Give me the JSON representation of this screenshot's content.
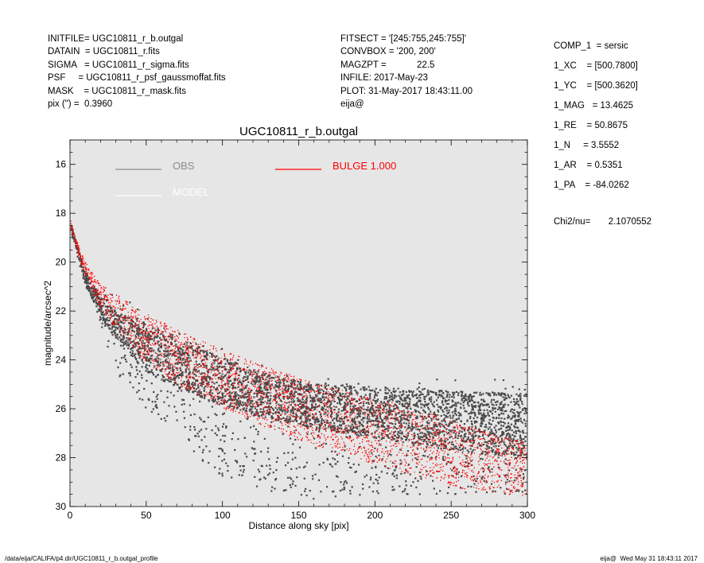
{
  "header": {
    "left": [
      "INITFILE= UGC10811_r_b.outgal",
      "DATAIN  = UGC10811_r.fits",
      "SIGMA   = UGC10811_r_sigma.fits",
      "PSF     = UGC10811_r_psf_gaussmoffat.fits",
      "MASK    = UGC10811_r_mask.fits",
      "pix (\") =  0.3960"
    ],
    "middle": [
      "FITSECT = '[245:755,245:755]'",
      "CONVBOX = '200, 200'",
      "MAGZPT =            22.5",
      "INFILE: 2017-May-23",
      "PLOT: 31-May-2017 18:43:11.00",
      "eija@"
    ],
    "right": [
      "COMP_1  = sersic",
      "1_XC    = [500.7800]",
      "1_YC    = [500.3620]",
      "1_MAG   = 13.4625",
      "1_RE    = 50.8675",
      "1_N     = 3.5552",
      "1_AR    = 0.5351",
      "1_PA    = -84.0262"
    ],
    "chi2": "Chi2/nu=       2.1070552"
  },
  "footer": {
    "path": "/data/eija/CALIFA/p4.dir/UGC10811_r_b.outgal_profile",
    "stamp": "eija@  Wed May 31 18:43:11 2017"
  },
  "colors": {
    "plot_bg": "#e6e6e6",
    "obs": "#4a4a4a",
    "obs_legend": "#8c8c8c",
    "model": "#ffffff",
    "bulge": "#ff0000"
  },
  "chart_data": {
    "type": "scatter",
    "title": "UGC10811_r_b.outgal",
    "xlabel": "Distance along sky [pix]",
    "ylabel": "magnitude/arcsec^2",
    "xlim": [
      0,
      300
    ],
    "ylim": [
      30,
      15
    ],
    "inverted_y": true,
    "grid": false,
    "legend_position": "top",
    "x_ticks": [
      0,
      50,
      100,
      150,
      200,
      250,
      300
    ],
    "y_ticks": [
      16,
      18,
      20,
      22,
      24,
      26,
      28,
      30
    ],
    "legend": [
      {
        "label": "OBS"
      },
      {
        "label": "MODEL"
      },
      {
        "label": "BULGE  1.000"
      }
    ],
    "series": [
      {
        "name": "OBS",
        "envelope": {
          "x": [
            0,
            10,
            20,
            30,
            50,
            75,
            100,
            130,
            160,
            200,
            230,
            260,
            300
          ],
          "y_upper": [
            18.3,
            20.3,
            21.3,
            21.2,
            21.8,
            22.6,
            23.4,
            24.2,
            24.6,
            24.6,
            24.7,
            24.7,
            24.7
          ],
          "y_lower": [
            18.6,
            21.0,
            22.5,
            24.5,
            26.0,
            27.5,
            28.8,
            29.5,
            29.7,
            29.5,
            29.5,
            29.5,
            29.5
          ],
          "y_dense_upper": [
            18.3,
            20.4,
            21.4,
            22.0,
            22.5,
            23.2,
            23.9,
            24.6,
            25.0,
            25.1,
            25.2,
            25.3,
            25.4
          ],
          "y_dense_lower": [
            18.5,
            20.9,
            22.2,
            23.2,
            24.5,
            25.3,
            25.9,
            26.4,
            26.8,
            27.2,
            27.5,
            27.8,
            28.0
          ]
        }
      },
      {
        "name": "BULGE  1.000",
        "envelope": {
          "x": [
            0,
            5,
            10,
            20,
            30,
            50,
            75,
            100,
            130,
            160,
            200,
            230,
            260,
            300
          ],
          "y_upper": [
            18.2,
            19.2,
            20.0,
            20.9,
            21.3,
            22.1,
            22.9,
            23.6,
            24.3,
            24.9,
            25.6,
            26.0,
            26.7,
            27.4
          ],
          "y_lower": [
            18.4,
            19.6,
            20.5,
            21.9,
            22.8,
            24.1,
            25.2,
            26.0,
            26.8,
            27.5,
            28.3,
            28.8,
            29.3,
            29.6
          ]
        }
      }
    ]
  }
}
